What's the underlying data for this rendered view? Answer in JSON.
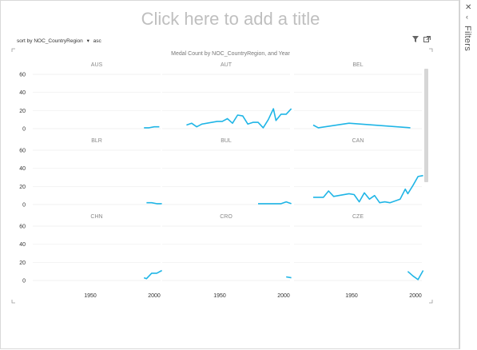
{
  "canvas": {
    "title_placeholder": "Click here to add a title",
    "sort": {
      "prefix": "sort by",
      "field": "NOC_CountryRegion",
      "order": "asc"
    },
    "filter_icon": "funnel-icon",
    "popout_icon": "popout-icon"
  },
  "filters_pane": {
    "label": "Filters",
    "close_icon": "close-icon",
    "collapse_icon": "chevron-left-icon"
  },
  "colors": {
    "line": "#1fb5e6",
    "grid": "#eeeeee",
    "axis_text": "#333333",
    "panel_title": "#888888"
  },
  "chart_data": {
    "type": "line",
    "title": "Medal Count by NOC_CountryRegion, and Year",
    "xlim": [
      1905,
      2005
    ],
    "ylim": [
      0,
      60
    ],
    "xticks": [
      1950,
      2000
    ],
    "yticks": [
      0,
      20,
      40,
      60
    ],
    "panels": [
      {
        "name": "AUS",
        "x": [
          1992,
          1996,
          2000,
          2004
        ],
        "y": [
          1,
          1,
          2,
          2
        ]
      },
      {
        "name": "AUT",
        "x": [
          1924,
          1928,
          1932,
          1936,
          1948,
          1952,
          1956,
          1960,
          1964,
          1968,
          1972,
          1976,
          1980,
          1984,
          1988,
          1992,
          1994,
          1998,
          2002,
          2006
        ],
        "y": [
          4,
          6,
          2,
          5,
          8,
          8,
          11,
          6,
          15,
          14,
          5,
          7,
          7,
          1,
          10,
          22,
          9,
          16,
          16,
          22
        ]
      },
      {
        "name": "BEL",
        "x": [
          1920,
          1924,
          1948,
          1996
        ],
        "y": [
          4,
          1,
          6,
          1
        ]
      },
      {
        "name": "BLR",
        "x": [
          1994,
          1998,
          2002,
          2006
        ],
        "y": [
          2,
          2,
          1,
          1
        ]
      },
      {
        "name": "BUL",
        "x": [
          1980,
          1984,
          1988,
          1992,
          1994,
          1998,
          2002,
          2006
        ],
        "y": [
          1,
          1,
          1,
          1,
          1,
          1,
          3,
          1
        ]
      },
      {
        "name": "CAN",
        "x": [
          1920,
          1924,
          1928,
          1932,
          1936,
          1948,
          1952,
          1956,
          1960,
          1964,
          1968,
          1972,
          1976,
          1980,
          1984,
          1988,
          1992,
          1994,
          1998,
          2002,
          2006
        ],
        "y": [
          8,
          8,
          8,
          15,
          9,
          12,
          11,
          3,
          13,
          6,
          10,
          2,
          3,
          2,
          4,
          6,
          17,
          12,
          21,
          31,
          32
        ]
      },
      {
        "name": "CHN",
        "x": [
          1992,
          1994,
          1998,
          2002,
          2006
        ],
        "y": [
          3,
          2,
          8,
          8,
          11
        ]
      },
      {
        "name": "CRO",
        "x": [
          2002,
          2006
        ],
        "y": [
          4,
          3
        ]
      },
      {
        "name": "CZE",
        "x": [
          1994,
          1998,
          2002,
          2006
        ],
        "y": [
          10,
          5,
          1,
          11
        ]
      }
    ]
  }
}
